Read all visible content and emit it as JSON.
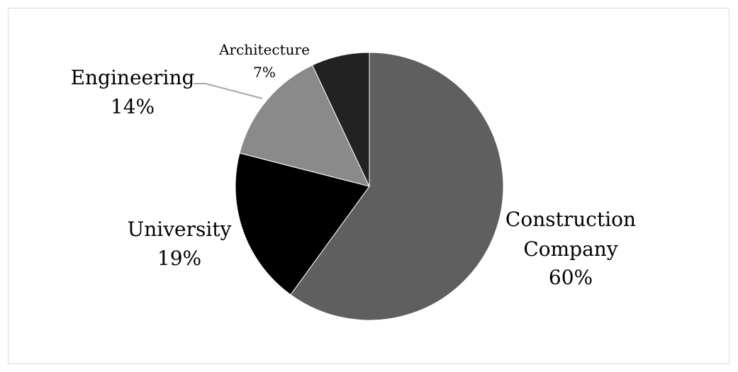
{
  "chart_data": {
    "type": "pie",
    "title": "",
    "start_angle_deg": 0,
    "direction": "clockwise",
    "legend": "none",
    "slices": [
      {
        "label": "Construction Company",
        "value": 60,
        "display": "60%",
        "color": "#5f5f5f"
      },
      {
        "label": "University",
        "value": 19,
        "display": "19%",
        "color": "#000000"
      },
      {
        "label": "Engineering",
        "value": 14,
        "display": "14%",
        "color": "#8a8a8a"
      },
      {
        "label": "Architecture",
        "value": 7,
        "display": "7%",
        "color": "#222222"
      }
    ]
  },
  "labels": {
    "construction_line1": "Construction",
    "construction_line2": "Company",
    "construction_pct": "60%",
    "university_name": "University",
    "university_pct": "19%",
    "engineering_name": "Engineering",
    "engineering_pct": "14%",
    "architecture_name": "Architecture",
    "architecture_pct": "7%"
  },
  "colors": {
    "leader_line": "#a6a6a6",
    "frame_border": "#d9d9d9"
  }
}
